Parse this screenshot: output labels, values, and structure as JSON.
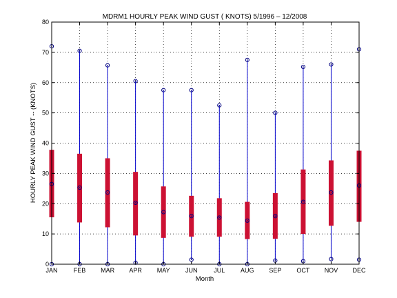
{
  "chart_data": {
    "type": "box",
    "title": "MDRM1  HOURLY PEAK WIND GUST ( KNOTS) 5/1996 – 12/2008",
    "xlabel": "Month",
    "ylabel": "HOURLY PEAK WIND GUST --  (KNOTS)",
    "ylim": [
      0,
      80
    ],
    "yticks": [
      0,
      10,
      20,
      30,
      40,
      50,
      60,
      70,
      80
    ],
    "grid": true,
    "categories": [
      "JAN",
      "FEB",
      "MAR",
      "APR",
      "MAY",
      "JUN",
      "JUL",
      "AUG",
      "SEP",
      "OCT",
      "NOV",
      "DEC"
    ],
    "min": [
      0,
      0,
      0,
      0.5,
      0,
      1.5,
      0,
      0,
      1.2,
      1,
      1.7,
      1.5
    ],
    "max": [
      72,
      70.5,
      65.7,
      60.5,
      57.5,
      57.5,
      52.5,
      67.5,
      50,
      65.2,
      66,
      71
    ],
    "q1": [
      15.5,
      13.8,
      12.2,
      9.5,
      8.7,
      9.1,
      9.1,
      8.3,
      8.4,
      10,
      12.7,
      14
    ],
    "q3": [
      37.8,
      36.5,
      35,
      30.5,
      25.7,
      22.6,
      21.8,
      20.6,
      23.5,
      31.3,
      34.3,
      37.5
    ],
    "median": [
      26.5,
      25.3,
      23.7,
      20.3,
      17.2,
      15.9,
      15.4,
      14.4,
      15.9,
      20.6,
      23.7,
      26
    ],
    "colors": {
      "whisker": "#0000cc",
      "box": "#cc1133",
      "marker": "#000080",
      "grid": "#000000"
    }
  }
}
